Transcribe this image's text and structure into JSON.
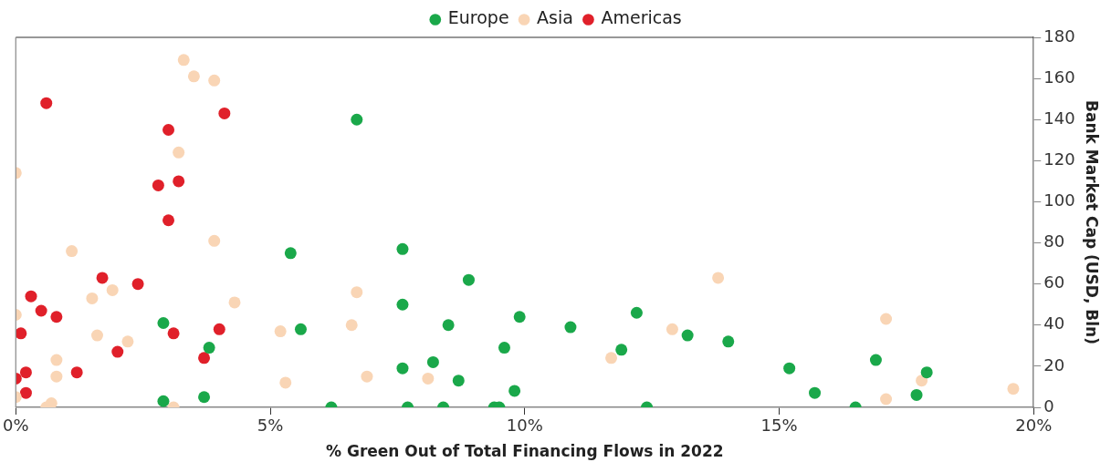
{
  "chart_data": {
    "type": "scatter",
    "xlabel": "% Green Out of Total Financing Flows in 2022",
    "ylabel": "Bank Market Cap (USD, Bln)",
    "legend": "top",
    "marker": "circle",
    "grid": false,
    "xlim": [
      0,
      20
    ],
    "xticks": [
      {
        "value": 0,
        "label": "0%"
      },
      {
        "value": 5,
        "label": "5%"
      },
      {
        "value": 10,
        "label": "10%"
      },
      {
        "value": 15,
        "label": "15%"
      },
      {
        "value": 20,
        "label": "20%"
      }
    ],
    "ylim": [
      0,
      180
    ],
    "yticks": [
      0,
      20,
      40,
      60,
      80,
      100,
      120,
      140,
      160,
      180
    ],
    "series": [
      {
        "name": "Europe",
        "color": "#1aa84a",
        "x": [
          6.7,
          5.4,
          7.6,
          8.9,
          7.6,
          9.9,
          8.5,
          10.9,
          12.2,
          5.6,
          9.6,
          11.9,
          13.2,
          14.0,
          2.9,
          3.8,
          8.2,
          7.6,
          8.7,
          9.8,
          15.2,
          16.9,
          17.9,
          15.7,
          17.7,
          2.9,
          3.7,
          6.2,
          7.7,
          8.4,
          9.4,
          9.5,
          12.4,
          16.5
        ],
        "values": [
          140,
          75,
          77,
          62,
          50,
          44,
          40,
          39,
          46,
          38,
          29,
          28,
          35,
          32,
          41,
          29,
          22,
          19,
          13,
          8,
          19,
          23,
          17,
          7,
          6,
          3,
          5,
          0,
          0,
          0,
          0,
          0,
          0,
          0
        ]
      },
      {
        "name": "Asia",
        "color": "#f9d5b5",
        "x": [
          3.3,
          3.5,
          3.9,
          3.2,
          0,
          1.1,
          3.9,
          0,
          1.9,
          1.5,
          4.3,
          6.7,
          13.8,
          2.2,
          1.6,
          0.8,
          0.8,
          6.6,
          5.2,
          5.3,
          6.9,
          8.1,
          11.7,
          12.9,
          17.1,
          17.8,
          17.1,
          19.6,
          0,
          0.7,
          0.6,
          3.1
        ],
        "values": [
          169,
          161,
          159,
          124,
          114,
          76,
          81,
          45,
          57,
          53,
          51,
          56,
          63,
          32,
          35,
          23,
          15,
          40,
          37,
          12,
          15,
          14,
          24,
          38,
          43,
          13,
          4,
          9,
          5,
          2,
          0,
          0
        ]
      },
      {
        "name": "Americas",
        "color": "#e0202a",
        "x": [
          0.6,
          4.1,
          3.0,
          3.2,
          2.8,
          3.0,
          1.7,
          2.4,
          0.3,
          0.5,
          0.8,
          0.1,
          3.1,
          4.0,
          2.0,
          1.2,
          3.7,
          0.2,
          0,
          0.2
        ],
        "values": [
          148,
          143,
          135,
          110,
          108,
          91,
          63,
          60,
          54,
          47,
          44,
          36,
          36,
          38,
          27,
          17,
          24,
          17,
          14,
          7
        ]
      }
    ]
  }
}
